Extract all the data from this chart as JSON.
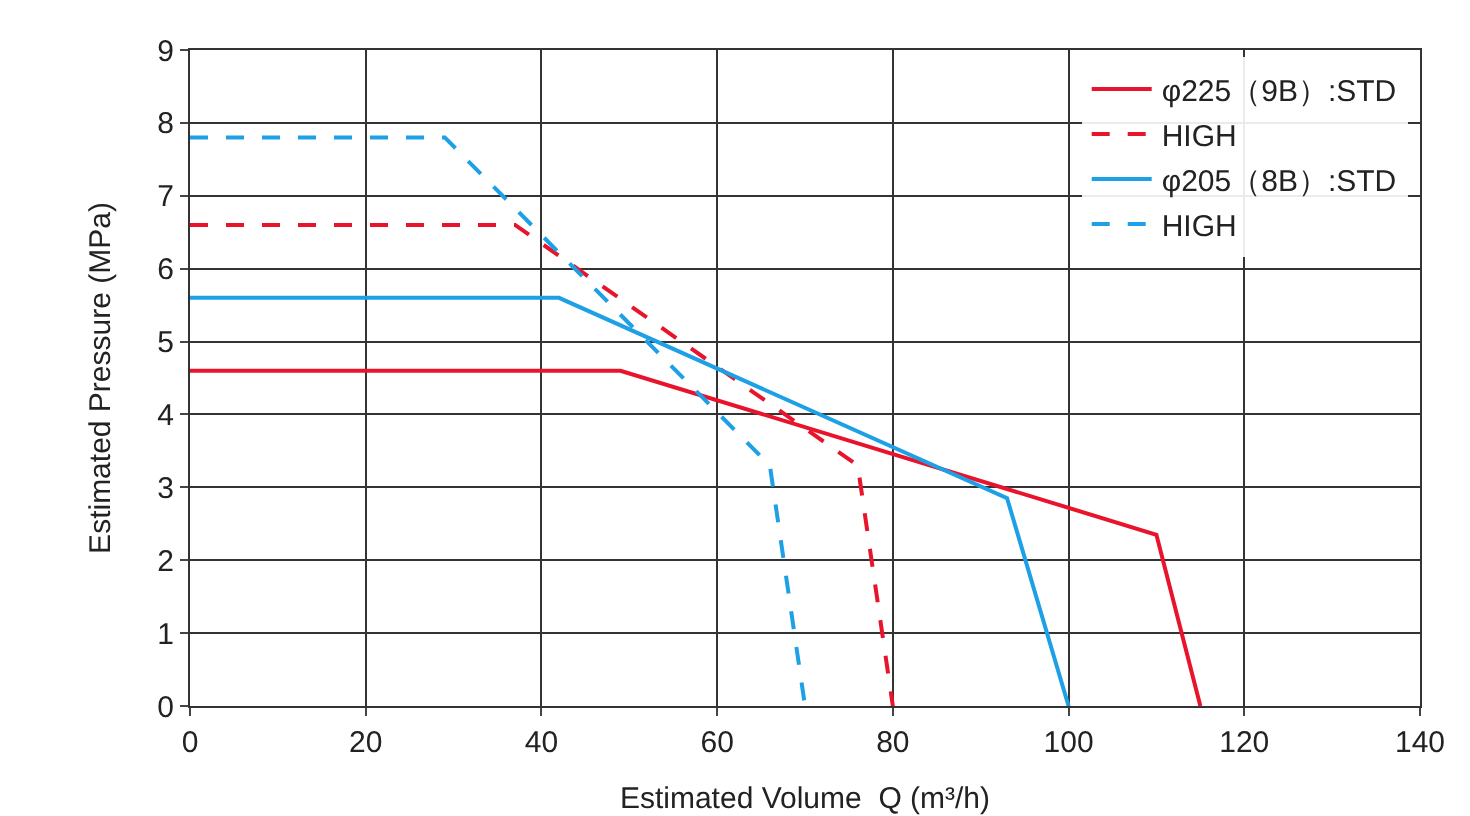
{
  "chart_data": {
    "type": "line",
    "xlabel": "Estimated Volume  Q (m³/h)",
    "ylabel": "Estimated Pressure (MPa)",
    "xlim": [
      0,
      140
    ],
    "xticks": [
      0,
      20,
      40,
      60,
      80,
      100,
      120,
      140
    ],
    "ylim": [
      0,
      9
    ],
    "yticks": [
      0,
      1,
      2,
      3,
      4,
      5,
      6,
      7,
      8,
      9
    ],
    "grid": true,
    "legend": "top right",
    "series": [
      {
        "name": "φ225（9B）:STD",
        "color": "#e8142c",
        "line_style": "solid",
        "x": [
          0,
          49,
          110,
          115
        ],
        "values": [
          4.6,
          4.6,
          2.35,
          0
        ]
      },
      {
        "name": "HIGH",
        "color": "#e8142c",
        "line_style": "dashed",
        "x": [
          0,
          37,
          76,
          80
        ],
        "values": [
          6.6,
          6.6,
          3.3,
          0
        ]
      },
      {
        "name": "φ205（8B）:STD",
        "color": "#1ea0e6",
        "line_style": "solid",
        "x": [
          0,
          42,
          93,
          100
        ],
        "values": [
          5.6,
          5.6,
          2.85,
          0
        ]
      },
      {
        "name": "HIGH",
        "color": "#1ea0e6",
        "line_style": "dashed",
        "x": [
          0,
          29,
          66,
          70
        ],
        "values": [
          7.8,
          7.8,
          3.3,
          0
        ]
      }
    ]
  }
}
